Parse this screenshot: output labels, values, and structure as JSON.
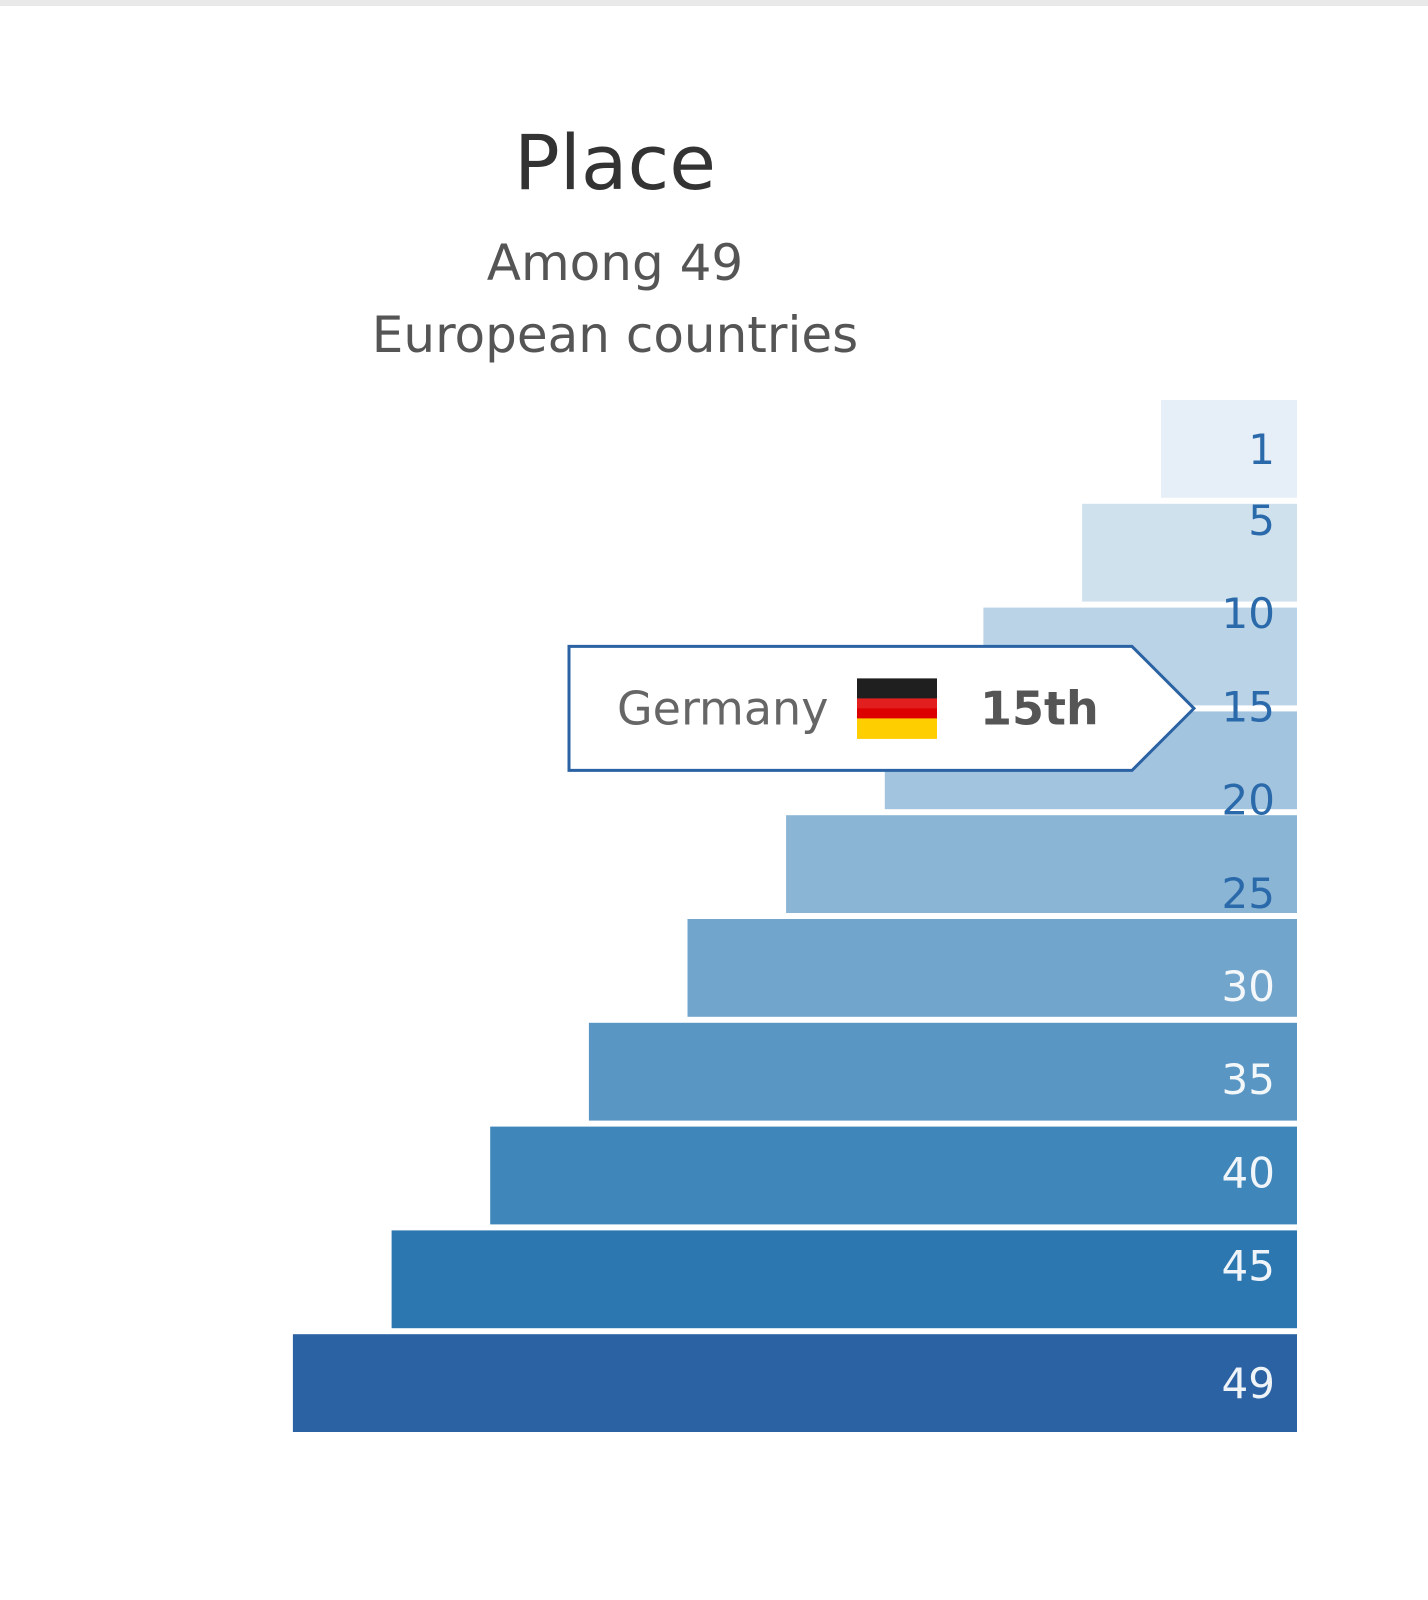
{
  "header": {
    "title": "Place",
    "subtitle_line1": "Among 49",
    "subtitle_line2": "European countries"
  },
  "chart_data": {
    "type": "bar",
    "orientation": "horizontal",
    "title": "Place",
    "subtitle": "Among 49 European countries",
    "categories": [
      "1",
      "5",
      "10",
      "15",
      "20",
      "25",
      "30",
      "35",
      "40",
      "45",
      "49"
    ],
    "values": [
      1,
      5,
      10,
      15,
      20,
      25,
      30,
      35,
      40,
      45,
      49
    ],
    "scale_labels": [
      "1",
      "5",
      "10",
      "15",
      "20",
      "25",
      "30",
      "35",
      "40",
      "45",
      "49"
    ],
    "xlim": [
      0,
      49
    ],
    "grid": false,
    "legend": "none",
    "colors": [
      "#e6eef7",
      "#d0e1ee",
      "#bad3e6",
      "#a3c4de",
      "#8bb5d5",
      "#72a5cc",
      "#5996c3",
      "#3f86ba",
      "#2c77b0",
      "#2b62a3"
    ],
    "highlight": {
      "country": "Germany",
      "rank_label": "15th",
      "rank": 15,
      "flag_colors": [
        "#000000",
        "#dd0000",
        "#ffce00"
      ]
    }
  }
}
